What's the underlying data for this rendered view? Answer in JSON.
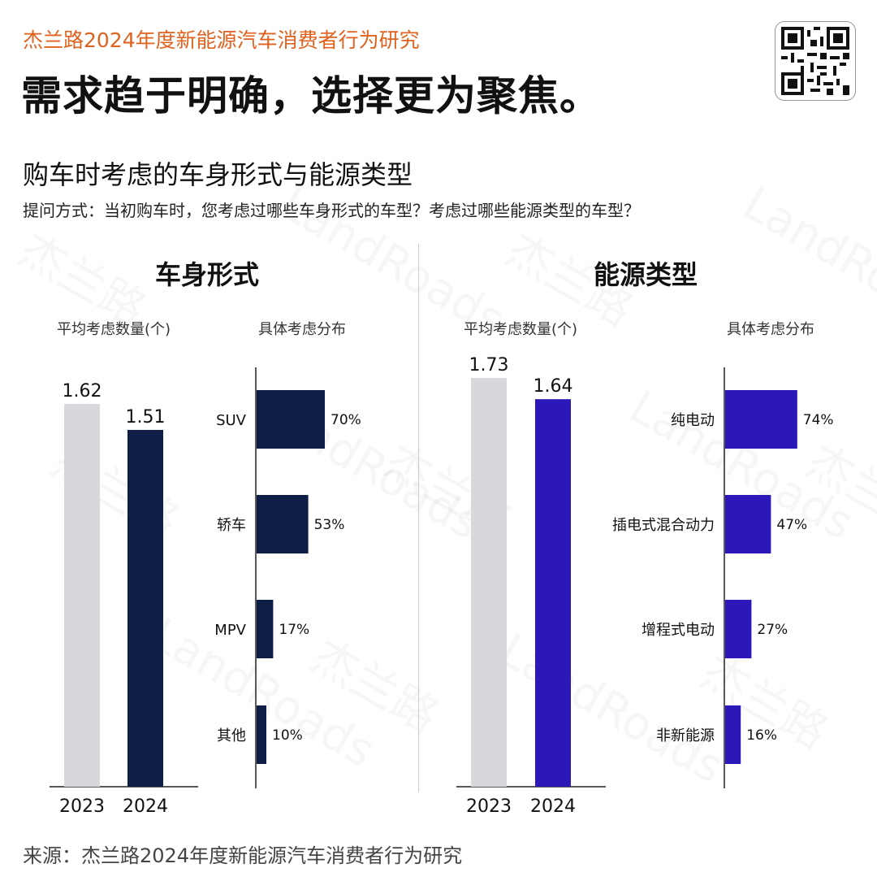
{
  "header": {
    "source_title": "杰兰路2024年度新能源汽车消费者行为研究",
    "headline": "需求趋于明确，选择更为聚焦。",
    "section_title": "购车时考虑的车身形式与能源类型",
    "question": "提问方式：当初购车时，您考虑过哪些车身形式的车型？考虑过哪些能源类型的车型？",
    "qr_icon": "qr-code-icon"
  },
  "panels": {
    "body": {
      "title": "车身形式",
      "avg_label": "平均考虑数量(个)",
      "dist_label": "具体考虑分布"
    },
    "energy": {
      "title": "能源类型",
      "avg_label": "平均考虑数量(个)",
      "dist_label": "具体考虑分布"
    }
  },
  "footer": {
    "source": "来源：杰兰路2024年度新能源汽车消费者行为研究"
  },
  "watermark": {
    "text": "杰兰路",
    "sub": "LandRoads"
  },
  "colors": {
    "accent_orange": "#e0621e",
    "grey_bar": "#d6d8dc",
    "navy": "#0e1e45",
    "purple": "#2c18b8"
  },
  "chart_data": [
    {
      "id": "body-avg",
      "type": "bar",
      "title": "平均考虑数量(个)",
      "categories": [
        "2023",
        "2024"
      ],
      "values": [
        1.62,
        1.51
      ],
      "bar_colors": [
        "#d6d8dc",
        "#0e1e45"
      ],
      "ylim": [
        0,
        1.73
      ]
    },
    {
      "id": "body-dist",
      "type": "bar",
      "orientation": "horizontal",
      "title": "具体考虑分布",
      "categories": [
        "SUV",
        "轿车",
        "MPV",
        "其他"
      ],
      "values": [
        70,
        53,
        17,
        10
      ],
      "value_labels": [
        "70%",
        "53%",
        "17%",
        "10%"
      ],
      "unit": "%",
      "color": "#0e1e45",
      "xlim": [
        0,
        100
      ]
    },
    {
      "id": "energy-avg",
      "type": "bar",
      "title": "平均考虑数量(个)",
      "categories": [
        "2023",
        "2024"
      ],
      "values": [
        1.73,
        1.64
      ],
      "bar_colors": [
        "#d6d8dc",
        "#2c18b8"
      ],
      "ylim": [
        0,
        1.73
      ]
    },
    {
      "id": "energy-dist",
      "type": "bar",
      "orientation": "horizontal",
      "title": "具体考虑分布",
      "categories": [
        "纯电动",
        "插电式混合动力",
        "增程式电动",
        "非新能源"
      ],
      "values": [
        74,
        47,
        27,
        16
      ],
      "value_labels": [
        "74%",
        "47%",
        "27%",
        "16%"
      ],
      "unit": "%",
      "color": "#2c18b8",
      "xlim": [
        0,
        100
      ]
    }
  ]
}
